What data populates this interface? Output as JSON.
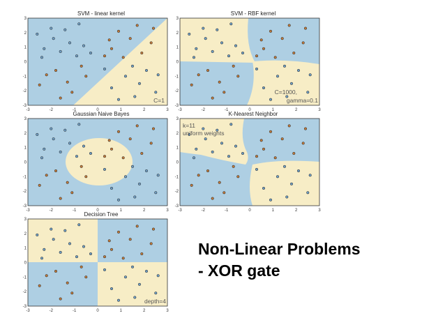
{
  "slide": {
    "title_line1": "Non-Linear Problems",
    "title_line2": "- XOR gate"
  },
  "colors": {
    "region_blue": "#aecfe3",
    "region_cream": "#f7edc6",
    "point_blue": "#6f9ec4",
    "point_brown": "#c07a3c",
    "point_edge": "#222222"
  },
  "chart_data": [
    {
      "type": "scatter",
      "title": "SVM - linear kernel",
      "annotation": "C=1",
      "xlim": [
        -3,
        3
      ],
      "ylim": [
        -3,
        3
      ],
      "xticks": [
        "-3",
        "-2",
        "-1",
        "0",
        "1",
        "2",
        "3"
      ],
      "yticks": [
        "-3",
        "-2",
        "-1",
        "0",
        "1",
        "2",
        "3"
      ],
      "decision_regions": "linear boundary y = 1.2*x - 0.2; cream below-right, blue above-left",
      "series": [
        {
          "class": "blue",
          "points": [
            [
              -2.6,
              1.9
            ],
            [
              -2.3,
              0.9
            ],
            [
              -1.9,
              1.6
            ],
            [
              -1.6,
              0.7
            ],
            [
              -1.2,
              1.3
            ],
            [
              -0.9,
              0.4
            ],
            [
              -0.6,
              1.1
            ],
            [
              -0.3,
              0.6
            ],
            [
              -2.4,
              0.3
            ],
            [
              -1.4,
              2.2
            ],
            [
              -0.8,
              2.6
            ],
            [
              -2.0,
              2.3
            ],
            [
              1.6,
              -2.4
            ],
            [
              1.2,
              -1.0
            ],
            [
              2.1,
              -0.6
            ],
            [
              0.6,
              -1.8
            ],
            [
              0.3,
              -0.5
            ],
            [
              1.8,
              -1.5
            ],
            [
              2.5,
              -2.1
            ],
            [
              0.9,
              -2.6
            ],
            [
              1.5,
              -0.3
            ],
            [
              2.6,
              -0.9
            ]
          ]
        },
        {
          "class": "brown",
          "points": [
            [
              -2.5,
              -1.6
            ],
            [
              -1.8,
              -0.6
            ],
            [
              -1.1,
              -2.1
            ],
            [
              -0.5,
              -1.0
            ],
            [
              -1.6,
              -2.5
            ],
            [
              -2.2,
              -0.9
            ],
            [
              -0.7,
              -0.3
            ],
            [
              -1.3,
              -1.4
            ],
            [
              1.4,
              1.6
            ],
            [
              0.6,
              0.9
            ],
            [
              1.9,
              0.6
            ],
            [
              0.9,
              2.1
            ],
            [
              2.3,
              1.3
            ],
            [
              0.3,
              0.4
            ],
            [
              1.1,
              0.3
            ],
            [
              2.4,
              2.3
            ],
            [
              1.7,
              2.5
            ],
            [
              0.5,
              1.5
            ]
          ]
        }
      ]
    },
    {
      "type": "scatter",
      "title": "SVM - RBF kernel",
      "annotation_line1": "C=1000,",
      "annotation_line2": "gamma=0.1",
      "xlim": [
        -3,
        3
      ],
      "ylim": [
        -3,
        3
      ],
      "xticks": [
        "-3",
        "-2",
        "-1",
        "0",
        "1",
        "2",
        "3"
      ],
      "yticks": [
        "-3",
        "-2",
        "-1",
        "0",
        "1",
        "2",
        "3"
      ],
      "decision_regions": "quadrant-like: cream top-left and bottom-right, blue top-right and bottom-left",
      "series": [
        {
          "class": "blue",
          "points": [
            [
              -2.6,
              1.9
            ],
            [
              -2.3,
              0.9
            ],
            [
              -1.9,
              1.6
            ],
            [
              -1.6,
              0.7
            ],
            [
              -1.2,
              1.3
            ],
            [
              -0.9,
              0.4
            ],
            [
              -0.6,
              1.1
            ],
            [
              -0.3,
              0.6
            ],
            [
              -2.4,
              0.3
            ],
            [
              -1.4,
              2.2
            ],
            [
              -0.8,
              2.6
            ],
            [
              -2.0,
              2.3
            ],
            [
              1.6,
              -2.4
            ],
            [
              1.2,
              -1.0
            ],
            [
              2.1,
              -0.6
            ],
            [
              0.6,
              -1.8
            ],
            [
              0.3,
              -0.5
            ],
            [
              1.8,
              -1.5
            ],
            [
              2.5,
              -2.1
            ],
            [
              0.9,
              -2.6
            ],
            [
              1.5,
              -0.3
            ],
            [
              2.6,
              -0.9
            ]
          ]
        },
        {
          "class": "brown",
          "points": [
            [
              -2.5,
              -1.6
            ],
            [
              -1.8,
              -0.6
            ],
            [
              -1.1,
              -2.1
            ],
            [
              -0.5,
              -1.0
            ],
            [
              -1.6,
              -2.5
            ],
            [
              -2.2,
              -0.9
            ],
            [
              -0.7,
              -0.3
            ],
            [
              -1.3,
              -1.4
            ],
            [
              1.4,
              1.6
            ],
            [
              0.6,
              0.9
            ],
            [
              1.9,
              0.6
            ],
            [
              0.9,
              2.1
            ],
            [
              2.3,
              1.3
            ],
            [
              0.3,
              0.4
            ],
            [
              1.1,
              0.3
            ],
            [
              2.4,
              2.3
            ],
            [
              1.7,
              2.5
            ],
            [
              0.5,
              1.5
            ]
          ]
        }
      ]
    },
    {
      "type": "scatter",
      "title": "Gaussian Naive Bayes",
      "xlim": [
        -3,
        3
      ],
      "ylim": [
        -3,
        3
      ],
      "xticks": [
        "-3",
        "-2",
        "-1",
        "0",
        "1",
        "2",
        "3"
      ],
      "yticks": [
        "-3",
        "-2",
        "-1",
        "0",
        "1",
        "2",
        "3"
      ],
      "decision_regions": "cream ellipse centred near (0, 0), blue elsewhere",
      "series": [
        {
          "class": "blue",
          "points": [
            [
              -2.6,
              1.9
            ],
            [
              -2.3,
              0.9
            ],
            [
              -1.9,
              1.6
            ],
            [
              -1.6,
              0.7
            ],
            [
              -1.2,
              1.3
            ],
            [
              -0.9,
              0.4
            ],
            [
              -0.6,
              1.1
            ],
            [
              -0.3,
              0.6
            ],
            [
              -2.4,
              0.3
            ],
            [
              -1.4,
              2.2
            ],
            [
              -0.8,
              2.6
            ],
            [
              -2.0,
              2.3
            ],
            [
              1.6,
              -2.4
            ],
            [
              1.2,
              -1.0
            ],
            [
              2.1,
              -0.6
            ],
            [
              0.6,
              -1.8
            ],
            [
              0.3,
              -0.5
            ],
            [
              1.8,
              -1.5
            ],
            [
              2.5,
              -2.1
            ],
            [
              0.9,
              -2.6
            ],
            [
              1.5,
              -0.3
            ],
            [
              2.6,
              -0.9
            ]
          ]
        },
        {
          "class": "brown",
          "points": [
            [
              -2.5,
              -1.6
            ],
            [
              -1.8,
              -0.6
            ],
            [
              -1.1,
              -2.1
            ],
            [
              -0.5,
              -1.0
            ],
            [
              -1.6,
              -2.5
            ],
            [
              -2.2,
              -0.9
            ],
            [
              -0.7,
              -0.3
            ],
            [
              -1.3,
              -1.4
            ],
            [
              1.4,
              1.6
            ],
            [
              0.6,
              0.9
            ],
            [
              1.9,
              0.6
            ],
            [
              0.9,
              2.1
            ],
            [
              2.3,
              1.3
            ],
            [
              0.3,
              0.4
            ],
            [
              1.1,
              0.3
            ],
            [
              2.4,
              2.3
            ],
            [
              1.7,
              2.5
            ],
            [
              0.5,
              1.5
            ]
          ]
        }
      ]
    },
    {
      "type": "scatter",
      "title": "K-Nearest Neighbor",
      "annotation_line1": "k=11",
      "annotation_line2": "uniform weights",
      "xlim": [
        -3,
        3
      ],
      "ylim": [
        -3,
        3
      ],
      "xticks": [
        "-3",
        "-2",
        "-1",
        "0",
        "1",
        "2",
        "3"
      ],
      "yticks": [
        "-3",
        "-2",
        "-1",
        "0",
        "1",
        "2",
        "3"
      ],
      "decision_regions": "irregular quadrants: cream top-left and bottom-right, blue top-right and bottom-left",
      "series": [
        {
          "class": "blue",
          "points": [
            [
              -2.6,
              1.9
            ],
            [
              -2.3,
              0.9
            ],
            [
              -1.9,
              1.6
            ],
            [
              -1.6,
              0.7
            ],
            [
              -1.2,
              1.3
            ],
            [
              -0.9,
              0.4
            ],
            [
              -0.6,
              1.1
            ],
            [
              -0.3,
              0.6
            ],
            [
              -2.4,
              0.3
            ],
            [
              -1.4,
              2.2
            ],
            [
              -0.8,
              2.6
            ],
            [
              -2.0,
              2.3
            ],
            [
              1.6,
              -2.4
            ],
            [
              1.2,
              -1.0
            ],
            [
              2.1,
              -0.6
            ],
            [
              0.6,
              -1.8
            ],
            [
              0.3,
              -0.5
            ],
            [
              1.8,
              -1.5
            ],
            [
              2.5,
              -2.1
            ],
            [
              0.9,
              -2.6
            ],
            [
              1.5,
              -0.3
            ],
            [
              2.6,
              -0.9
            ]
          ]
        },
        {
          "class": "brown",
          "points": [
            [
              -2.5,
              -1.6
            ],
            [
              -1.8,
              -0.6
            ],
            [
              -1.1,
              -2.1
            ],
            [
              -0.5,
              -1.0
            ],
            [
              -1.6,
              -2.5
            ],
            [
              -2.2,
              -0.9
            ],
            [
              -0.7,
              -0.3
            ],
            [
              -1.3,
              -1.4
            ],
            [
              1.4,
              1.6
            ],
            [
              0.6,
              0.9
            ],
            [
              1.9,
              0.6
            ],
            [
              0.9,
              2.1
            ],
            [
              2.3,
              1.3
            ],
            [
              0.3,
              0.4
            ],
            [
              1.1,
              0.3
            ],
            [
              2.4,
              2.3
            ],
            [
              1.7,
              2.5
            ],
            [
              0.5,
              1.5
            ]
          ]
        }
      ]
    },
    {
      "type": "scatter",
      "title": "Decision Tree",
      "annotation": "depth=4",
      "xlim": [
        -3,
        3
      ],
      "ylim": [
        -3,
        3
      ],
      "xticks": [
        "-3",
        "-2",
        "-1",
        "0",
        "1",
        "2",
        "3"
      ],
      "yticks": [
        "-3",
        "-2",
        "-1",
        "0",
        "1",
        "2",
        "3"
      ],
      "decision_regions": "axis-aligned quadrants split at x=0 and y=0: cream top-left and bottom-right, blue top-right and bottom-left",
      "series": [
        {
          "class": "blue",
          "points": [
            [
              -2.6,
              1.9
            ],
            [
              -2.3,
              0.9
            ],
            [
              -1.9,
              1.6
            ],
            [
              -1.6,
              0.7
            ],
            [
              -1.2,
              1.3
            ],
            [
              -0.9,
              0.4
            ],
            [
              -0.6,
              1.1
            ],
            [
              -0.3,
              0.6
            ],
            [
              -2.4,
              0.3
            ],
            [
              -1.4,
              2.2
            ],
            [
              -0.8,
              2.6
            ],
            [
              -2.0,
              2.3
            ],
            [
              1.6,
              -2.4
            ],
            [
              1.2,
              -1.0
            ],
            [
              2.1,
              -0.6
            ],
            [
              0.6,
              -1.8
            ],
            [
              0.3,
              -0.5
            ],
            [
              1.8,
              -1.5
            ],
            [
              2.5,
              -2.1
            ],
            [
              0.9,
              -2.6
            ],
            [
              1.5,
              -0.3
            ],
            [
              2.6,
              -0.9
            ]
          ]
        },
        {
          "class": "brown",
          "points": [
            [
              -2.5,
              -1.6
            ],
            [
              -1.8,
              -0.6
            ],
            [
              -1.1,
              -2.1
            ],
            [
              -0.5,
              -1.0
            ],
            [
              -1.6,
              -2.5
            ],
            [
              -2.2,
              -0.9
            ],
            [
              -0.7,
              -0.3
            ],
            [
              -1.3,
              -1.4
            ],
            [
              1.4,
              1.6
            ],
            [
              0.6,
              0.9
            ],
            [
              1.9,
              0.6
            ],
            [
              0.9,
              2.1
            ],
            [
              2.3,
              1.3
            ],
            [
              0.3,
              0.4
            ],
            [
              1.1,
              0.3
            ],
            [
              2.4,
              2.3
            ],
            [
              1.7,
              2.5
            ],
            [
              0.5,
              1.5
            ]
          ]
        }
      ]
    }
  ]
}
